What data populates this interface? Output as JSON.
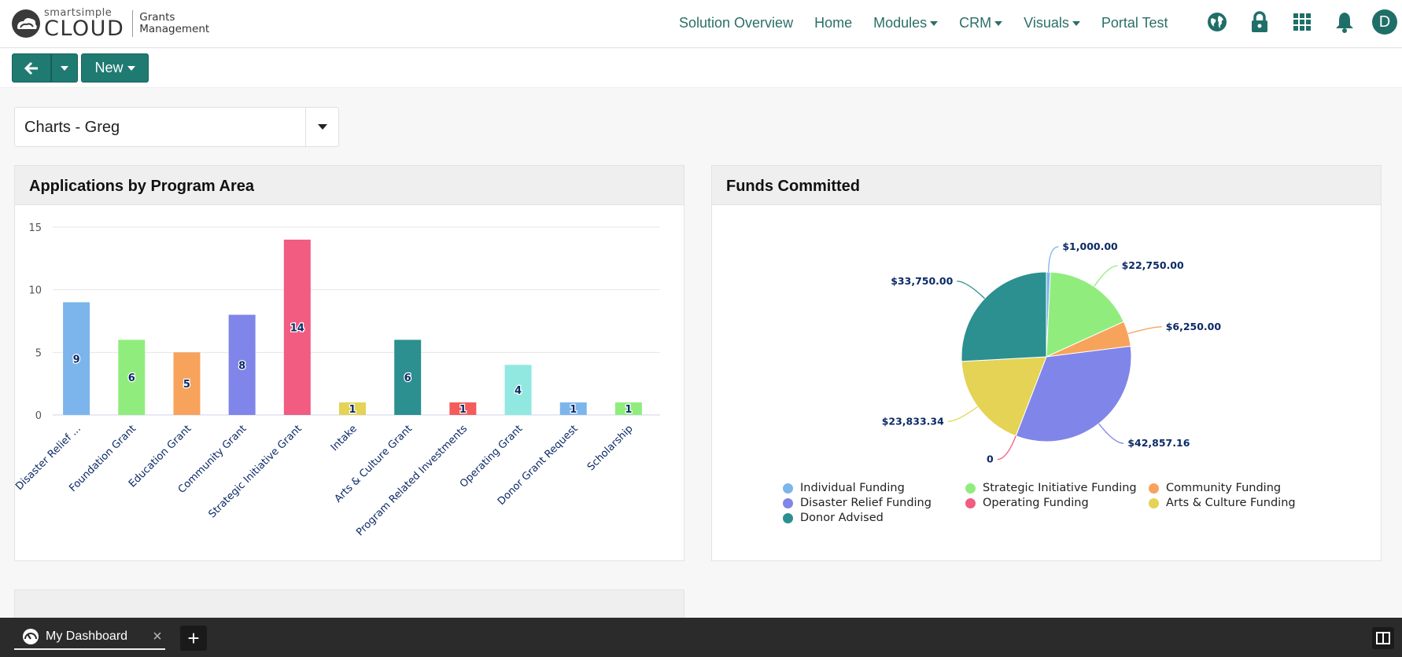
{
  "header": {
    "logo_small": "smartsimple",
    "logo_big": "CLOUD",
    "product_line1": "Grants",
    "product_line2": "Management",
    "nav": [
      {
        "label": "Solution Overview",
        "dropdown": false
      },
      {
        "label": "Home",
        "dropdown": false
      },
      {
        "label": "Modules",
        "dropdown": true
      },
      {
        "label": "CRM",
        "dropdown": true
      },
      {
        "label": "Visuals",
        "dropdown": true
      },
      {
        "label": "Portal Test",
        "dropdown": false
      }
    ],
    "icons": [
      "globe-icon",
      "lock-icon",
      "apps-grid-icon",
      "bell-icon"
    ],
    "avatar_initial": "D"
  },
  "toolbar": {
    "new_label": "New"
  },
  "dashboard_selector": {
    "value": "Charts - Greg"
  },
  "panels": {
    "left_title": "Applications by Program Area",
    "right_title": "Funds Committed"
  },
  "colors": {
    "brand": "#1f7a72",
    "nav_text": "#2a6f68"
  },
  "chart_data": [
    {
      "type": "bar",
      "title": "Applications by Program Area",
      "categories": [
        "Disaster Relief ...",
        "Foundation Grant",
        "Education Grant",
        "Community Grant",
        "Strategic Initiative Grant",
        "Intake",
        "Arts & Culture Grant",
        "Program Related Investments",
        "Operating Grant",
        "Donor Grant Request",
        "Scholarship"
      ],
      "values": [
        9,
        6,
        5,
        8,
        14,
        1,
        6,
        1,
        4,
        1,
        1
      ],
      "colors": [
        "#7cb5ec",
        "#90ed7d",
        "#f7a35c",
        "#8085e9",
        "#f15c80",
        "#e4d354",
        "#2b908f",
        "#f45b5b",
        "#91e8e1",
        "#7cb5ec",
        "#90ed7d"
      ],
      "ylim": [
        0,
        15
      ],
      "yticks": [
        0,
        5,
        10,
        15
      ],
      "data_labels": true,
      "grid": true,
      "legend": "none"
    },
    {
      "type": "pie",
      "title": "Funds Committed",
      "slices": [
        {
          "name": "Individual Funding",
          "value": 1000,
          "label": "$1,000.00",
          "color": "#7cb5ec"
        },
        {
          "name": "Strategic Initiative Funding",
          "value": 22750,
          "label": "$22,750.00",
          "color": "#90ed7d"
        },
        {
          "name": "Community Funding",
          "value": 6250,
          "label": "$6,250.00",
          "color": "#f7a35c"
        },
        {
          "name": "Disaster Relief Funding",
          "value": 42857.16,
          "label": "$42,857.16",
          "color": "#8085e9"
        },
        {
          "name": "Operating Funding",
          "value": 0,
          "label": "0",
          "color": "#f15c80"
        },
        {
          "name": "Arts & Culture Funding",
          "value": 23833.34,
          "label": "$23,833.34",
          "color": "#e4d354"
        },
        {
          "name": "Donor Advised",
          "value": 33750,
          "label": "$33,750.00",
          "color": "#2b908f"
        }
      ],
      "legend": "bottom"
    }
  ],
  "taskbar": {
    "tab_label": "My Dashboard",
    "close_symbol": "×",
    "add_symbol": "+"
  }
}
